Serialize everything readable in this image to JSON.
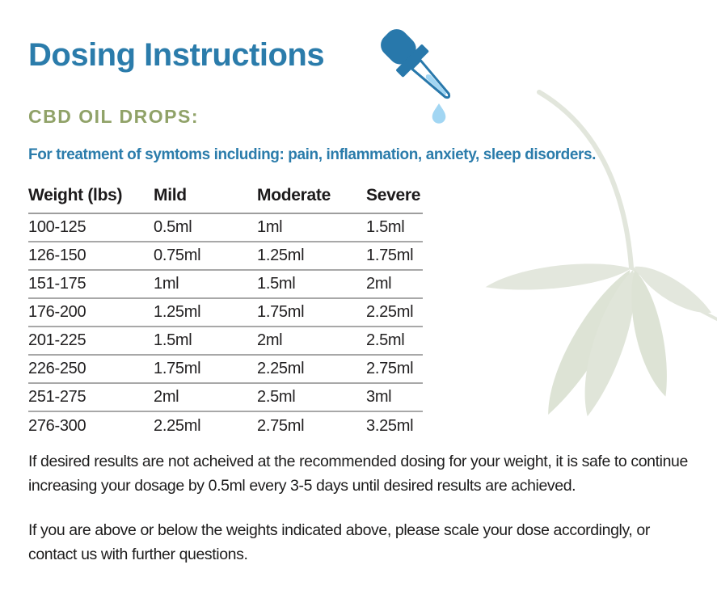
{
  "header": {
    "title": "Dosing Instructions",
    "section_heading": "CBD OIL DROPS:",
    "subtitle": "For treatment of symtoms including: pain, inflammation, anxiety, sleep disorders."
  },
  "table": {
    "headers": [
      "Weight (lbs)",
      "Mild",
      "Moderate",
      "Severe"
    ],
    "rows": [
      [
        "100-125",
        "0.5ml",
        "1ml",
        "1.5ml"
      ],
      [
        "126-150",
        "0.75ml",
        "1.25ml",
        "1.75ml"
      ],
      [
        "151-175",
        "1ml",
        "1.5ml",
        "2ml"
      ],
      [
        "176-200",
        "1.25ml",
        "1.75ml",
        "2.25ml"
      ],
      [
        "201-225",
        "1.5ml",
        "2ml",
        "2.5ml"
      ],
      [
        "226-250",
        "1.75ml",
        "2.25ml",
        "2.75ml"
      ],
      [
        "251-275",
        "2ml",
        "2.5ml",
        "3ml"
      ],
      [
        "276-300",
        "2.25ml",
        "2.75ml",
        "3.25ml"
      ]
    ]
  },
  "notes": [
    "If desired results are not acheived at the recommended dosing for your weight, it is safe to continue increasing your dosage by 0.5ml every 3-5 days until desired results are achieved.",
    "If you are above or below the weights indicated above, please scale your dose accordingly, or contact us with further questions."
  ],
  "icons": {
    "dropper": "dropper-icon",
    "leaf": "hemp-leaf-decoration"
  },
  "colors": {
    "accent_blue": "#2b7cab",
    "dropper_blue": "#2878ab",
    "light_blue": "#a2d6f3",
    "sage_green": "#90a268",
    "text_dark": "#222021",
    "table_line": "#a4a4a4",
    "leaf_fill": "#e2e6dc"
  }
}
